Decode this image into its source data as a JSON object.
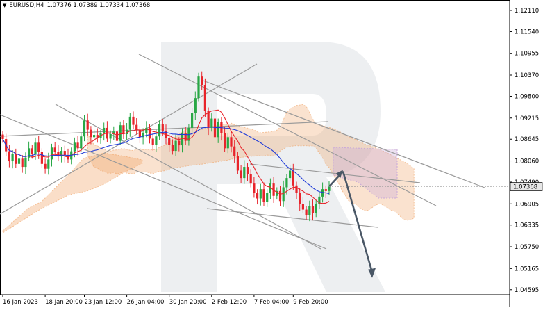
{
  "header": {
    "symbol": "EURUSD,H4",
    "ohlc": "1.07376 1.07389 1.07334 1.07368"
  },
  "chart_data": {
    "type": "candlestick",
    "symbol": "EURUSD",
    "timeframe": "H4",
    "last_price": 1.07368,
    "ylim": [
      1.0446,
      1.1239
    ],
    "y_ticks": [
      "1.12110",
      "1.11540",
      "1.10955",
      "1.10370",
      "1.09800",
      "1.09215",
      "1.08645",
      "1.08060",
      "1.07490",
      "1.06905",
      "1.06335",
      "1.05750",
      "1.05165",
      "1.04595"
    ],
    "x_ticks": [
      "16 Jan 2023",
      "18 Jan 20:00",
      "23 Jan 12:00",
      "26 Jan 04:00",
      "30 Jan 20:00",
      "2 Feb 12:00",
      "7 Feb 04:00",
      "9 Feb 20:00"
    ],
    "closes": [
      1.0865,
      1.0832,
      1.0805,
      1.0825,
      1.0798,
      1.0812,
      1.079,
      1.0815,
      1.084,
      1.0825,
      1.0855,
      1.083,
      1.0798,
      1.0785,
      1.081,
      1.0842,
      1.083,
      1.0818,
      1.0833,
      1.0821,
      1.081,
      1.0832,
      1.0855,
      1.084,
      1.0872,
      1.0915,
      1.089,
      1.087,
      1.0876,
      1.0868,
      1.088,
      1.0895,
      1.0866,
      1.0878,
      1.0885,
      1.086,
      1.0902,
      1.0878,
      1.089,
      1.0925,
      1.0903,
      1.089,
      1.087,
      1.088,
      1.0895,
      1.0866,
      1.085,
      1.0872,
      1.0905,
      1.0886,
      1.0867,
      1.085,
      1.0833,
      1.086,
      1.0848,
      1.088,
      1.086,
      1.0895,
      1.0935,
      1.0975,
      1.1033,
      1.101,
      1.094,
      1.0895,
      1.092,
      1.087,
      1.091,
      1.088,
      1.084,
      1.087,
      1.0845,
      1.082,
      1.078,
      1.076,
      1.079,
      1.077,
      1.0745,
      1.072,
      1.0705,
      1.073,
      1.0695,
      1.072,
      1.0745,
      1.0712,
      1.0725,
      1.0698,
      1.0735,
      1.076,
      1.078,
      1.074,
      1.072,
      1.069,
      1.0675,
      1.066,
      1.0685,
      1.0665,
      1.069,
      1.071,
      1.073,
      1.0725,
      1.07368
    ],
    "forecast": {
      "up_target": 1.0778,
      "down_target": 1.0495
    },
    "colors": {
      "bull": "#28a745",
      "bear": "#e8232a",
      "tenkan": "#e8232a",
      "kijun": "#1f3bd8",
      "cloud_bull": "#f0a060",
      "cloud_bear": "#c8a8d8",
      "trendline": "#9a9a9a",
      "arrow": "#4a5766",
      "price_badge_bg": "#e6e6e6"
    }
  }
}
